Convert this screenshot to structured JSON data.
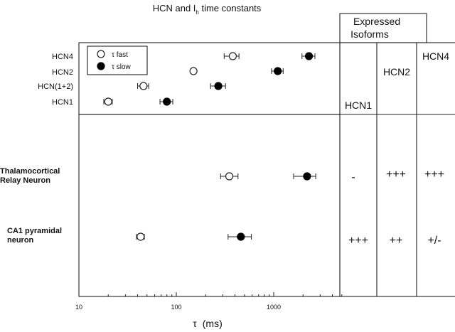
{
  "chart_data": {
    "type": "scatter",
    "title": "HCN and I",
    "title_subscript": "h",
    "title_suffix": " time constants",
    "xlabel_symbol": "τ",
    "xlabel_unit": "(ms)",
    "x_scale": "log",
    "xlim": [
      10,
      5000
    ],
    "x_ticks": [
      10,
      100,
      1000
    ],
    "x_tick_labels": [
      "10",
      "100",
      "1000"
    ],
    "grid": false,
    "legend": {
      "placement": "top-left",
      "entries": [
        {
          "label": "τ fast",
          "marker": "open-circle"
        },
        {
          "label": "τ slow",
          "marker": "filled-circle"
        }
      ]
    },
    "channel_rows": [
      {
        "label": "HCN4",
        "fast": 380,
        "fast_err": [
          310,
          440
        ],
        "slow": 2300,
        "slow_err": [
          1950,
          2650
        ]
      },
      {
        "label": "HCN2",
        "fast": 150,
        "fast_err": null,
        "slow": 1100,
        "slow_err": [
          950,
          1250
        ]
      },
      {
        "label": "HCN(1+2)",
        "fast": 46,
        "fast_err": [
          40,
          52
        ],
        "slow": 270,
        "slow_err": [
          225,
          320
        ]
      },
      {
        "label": "HCN1",
        "fast": 20,
        "fast_err": [
          18,
          22
        ],
        "slow": 80,
        "slow_err": [
          68,
          92
        ]
      }
    ],
    "neuron_rows": [
      {
        "label_lines": [
          "Thalamocortical",
          "Relay Neuron"
        ],
        "fast": 350,
        "fast_err": [
          285,
          430
        ],
        "slow": 2200,
        "slow_err": [
          1600,
          2700
        ]
      },
      {
        "label_lines": [
          "CA1 pyramidal",
          "neuron"
        ],
        "fast": 43,
        "fast_err": [
          39,
          47
        ],
        "slow": 460,
        "slow_err": [
          340,
          590
        ]
      }
    ],
    "isoforms": {
      "header_lines": [
        "Expressed",
        "Isoforms"
      ],
      "columns": [
        "HCN1",
        "HCN2",
        "HCN4"
      ],
      "rows": [
        {
          "neuron": "Thalamocortical Relay Neuron",
          "values": [
            "-",
            "+++",
            "+++"
          ]
        },
        {
          "neuron": "CA1 pyramidal neuron",
          "values": [
            "+++",
            "++",
            "+/-"
          ]
        }
      ]
    }
  }
}
